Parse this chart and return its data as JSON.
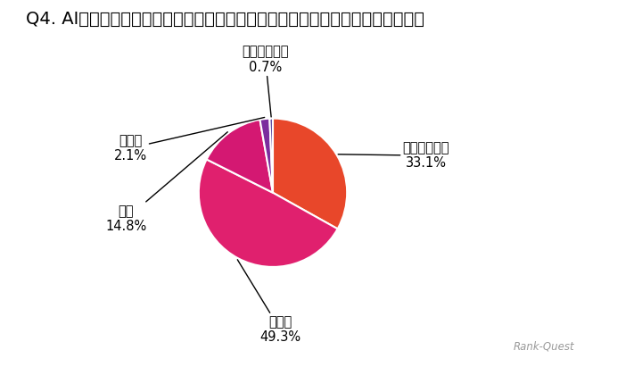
{
  "title": "Q4. AIライティングで生成したコンテンツの品質を、どのように評価しますか？",
  "labels": [
    "非常に高品質",
    "高品質",
    "普通",
    "低品質",
    "非常に低品質"
  ],
  "values": [
    33.1,
    49.3,
    14.8,
    2.1,
    0.7
  ],
  "colors": [
    "#E8472A",
    "#E0206E",
    "#D41872",
    "#7B2D9E",
    "#5B4AA0"
  ],
  "background_color": "#ffffff",
  "title_fontsize": 14,
  "watermark": "Rank-Quest",
  "label_fontsize": 10.5,
  "pct_fontsize": 10.5
}
